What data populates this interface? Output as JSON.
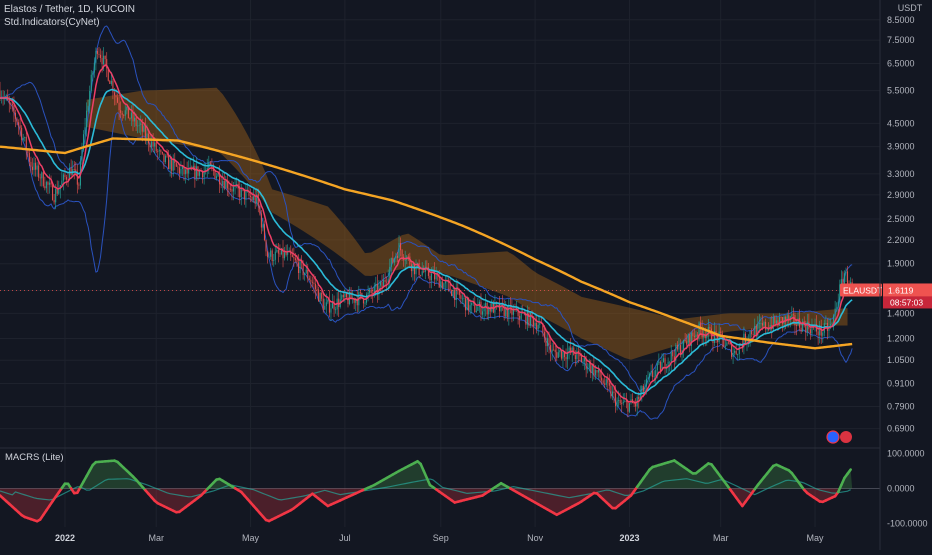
{
  "header": {
    "title": "Elastos / Tether, 1D, KUCOIN",
    "indicator": "Std.Indicators(CyNet)",
    "currency": "USDT"
  },
  "price_badge": {
    "symbol": "ELAUSDT",
    "price": "1.6119",
    "countdown": "08:57:03",
    "color": "#f23645"
  },
  "colors": {
    "background": "#131722",
    "candle_up": "#26a69a",
    "candle_down": "#ef5350",
    "ema_fast": "#ef3f67",
    "ema_mid": "#2bbbd8",
    "ema_slow": "#f5a524",
    "bollinger": "#2a52be",
    "cloud": "#a06218",
    "macd_pos": "#4caf50",
    "macd_neg": "#f23645"
  },
  "chart_data": [
    {
      "type": "candlestick",
      "title": "Elastos / Tether, 1D, KUCOIN",
      "ylabel": "USDT",
      "yscale": "log",
      "ylim": [
        0.62,
        9.6
      ],
      "yticks": [
        "8.5000",
        "7.5000",
        "6.5000",
        "5.5000",
        "4.5000",
        "3.9000",
        "3.3000",
        "2.9000",
        "2.5000",
        "2.2000",
        "1.9000",
        "1.6119",
        "1.4000",
        "1.2000",
        "1.0500",
        "0.9100",
        "0.7900",
        "0.6900"
      ],
      "xticks": [
        "2022",
        "Mar",
        "May",
        "Jul",
        "Sep",
        "Nov",
        "2023",
        "Mar",
        "May"
      ],
      "x_range": [
        "2021-11-20",
        "2023-06-12"
      ],
      "last_price": 1.6119,
      "price_anchors": [
        [
          "2021-11-20",
          5.5
        ],
        [
          "2021-12-01",
          4.6
        ],
        [
          "2021-12-10",
          3.5
        ],
        [
          "2021-12-25",
          2.9
        ],
        [
          "2022-01-05",
          3.4
        ],
        [
          "2022-01-10",
          3.1
        ],
        [
          "2022-01-22",
          7.2
        ],
        [
          "2022-02-05",
          5.0
        ],
        [
          "2022-02-20",
          4.3
        ],
        [
          "2022-03-05",
          3.6
        ],
        [
          "2022-03-20",
          3.3
        ],
        [
          "2022-04-05",
          3.4
        ],
        [
          "2022-04-20",
          3.0
        ],
        [
          "2022-05-05",
          2.8
        ],
        [
          "2022-05-12",
          2.0
        ],
        [
          "2022-05-25",
          2.0
        ],
        [
          "2022-06-08",
          1.75
        ],
        [
          "2022-06-18",
          1.45
        ],
        [
          "2022-06-30",
          1.52
        ],
        [
          "2022-07-15",
          1.55
        ],
        [
          "2022-07-25",
          1.65
        ],
        [
          "2022-08-05",
          2.1
        ],
        [
          "2022-08-15",
          1.85
        ],
        [
          "2022-08-28",
          1.75
        ],
        [
          "2022-09-08",
          1.62
        ],
        [
          "2022-09-20",
          1.45
        ],
        [
          "2022-10-05",
          1.45
        ],
        [
          "2022-10-20",
          1.4
        ],
        [
          "2022-11-03",
          1.32
        ],
        [
          "2022-11-12",
          1.1
        ],
        [
          "2022-11-25",
          1.1
        ],
        [
          "2022-12-10",
          0.98
        ],
        [
          "2022-12-25",
          0.8
        ],
        [
          "2023-01-05",
          0.8
        ],
        [
          "2023-01-15",
          0.95
        ],
        [
          "2023-01-25",
          1.05
        ],
        [
          "2023-02-05",
          1.15
        ],
        [
          "2023-02-15",
          1.27
        ],
        [
          "2023-02-28",
          1.2
        ],
        [
          "2023-03-10",
          1.1
        ],
        [
          "2023-03-20",
          1.25
        ],
        [
          "2023-04-01",
          1.3
        ],
        [
          "2023-04-12",
          1.35
        ],
        [
          "2023-04-25",
          1.3
        ],
        [
          "2023-05-05",
          1.25
        ],
        [
          "2023-05-12",
          1.3
        ],
        [
          "2023-05-20",
          1.8
        ],
        [
          "2023-05-25",
          1.6119
        ]
      ],
      "ema_slow_anchors": [
        [
          "2021-11-20",
          3.9
        ],
        [
          "2022-01-01",
          3.75
        ],
        [
          "2022-02-01",
          4.1
        ],
        [
          "2022-03-15",
          4.05
        ],
        [
          "2022-05-01",
          3.6
        ],
        [
          "2022-07-01",
          3.0
        ],
        [
          "2022-08-01",
          2.8
        ],
        [
          "2022-09-15",
          2.4
        ],
        [
          "2022-11-01",
          1.95
        ],
        [
          "2022-12-01",
          1.7
        ],
        [
          "2023-01-01",
          1.5
        ],
        [
          "2023-02-01",
          1.35
        ],
        [
          "2023-03-01",
          1.22
        ],
        [
          "2023-04-01",
          1.17
        ],
        [
          "2023-05-01",
          1.13
        ],
        [
          "2023-05-25",
          1.16
        ]
      ],
      "cloud_top_anchors": [
        [
          "2022-01-15",
          5.2
        ],
        [
          "2022-02-20",
          5.5
        ],
        [
          "2022-04-10",
          5.6
        ],
        [
          "2022-04-25",
          4.5
        ],
        [
          "2022-05-15",
          3.0
        ],
        [
          "2022-06-20",
          2.7
        ],
        [
          "2022-07-15",
          2.0
        ],
        [
          "2022-08-10",
          2.3
        ],
        [
          "2022-09-01",
          2.0
        ],
        [
          "2022-10-15",
          2.05
        ],
        [
          "2022-11-01",
          1.8
        ],
        [
          "2022-12-01",
          1.55
        ],
        [
          "2023-01-01",
          1.45
        ],
        [
          "2023-02-01",
          1.35
        ],
        [
          "2023-03-05",
          1.4
        ],
        [
          "2023-04-15",
          1.4
        ],
        [
          "2023-05-25",
          1.45
        ]
      ],
      "cloud_bottom_anchors": [
        [
          "2022-01-15",
          4.4
        ],
        [
          "2022-02-20",
          4.1
        ],
        [
          "2022-04-10",
          3.8
        ],
        [
          "2022-05-15",
          2.6
        ],
        [
          "2022-06-20",
          2.1
        ],
        [
          "2022-07-15",
          1.75
        ],
        [
          "2022-08-10",
          1.85
        ],
        [
          "2022-09-01",
          1.8
        ],
        [
          "2022-10-15",
          1.55
        ],
        [
          "2022-11-01",
          1.4
        ],
        [
          "2022-12-01",
          1.2
        ],
        [
          "2023-01-01",
          1.05
        ],
        [
          "2023-02-01",
          1.15
        ],
        [
          "2023-03-05",
          1.25
        ],
        [
          "2023-04-15",
          1.3
        ],
        [
          "2023-05-25",
          1.3
        ]
      ]
    },
    {
      "type": "area",
      "title": "MACRS (Lite)",
      "ylim": [
        -110,
        110
      ],
      "yticks": [
        "100.0000",
        "0.0000",
        "-100.0000"
      ],
      "anchors": [
        [
          "2021-11-20",
          -20
        ],
        [
          "2021-12-05",
          -80
        ],
        [
          "2021-12-15",
          -95
        ],
        [
          "2021-12-25",
          -30
        ],
        [
          "2022-01-02",
          20
        ],
        [
          "2022-01-08",
          -20
        ],
        [
          "2022-01-20",
          75
        ],
        [
          "2022-02-03",
          80
        ],
        [
          "2022-02-15",
          30
        ],
        [
          "2022-03-01",
          -40
        ],
        [
          "2022-03-15",
          -70
        ],
        [
          "2022-03-30",
          -20
        ],
        [
          "2022-04-10",
          30
        ],
        [
          "2022-04-25",
          -10
        ],
        [
          "2022-05-12",
          -95
        ],
        [
          "2022-05-28",
          -60
        ],
        [
          "2022-06-10",
          -15
        ],
        [
          "2022-06-20",
          -50
        ],
        [
          "2022-07-05",
          -20
        ],
        [
          "2022-07-20",
          10
        ],
        [
          "2022-08-05",
          50
        ],
        [
          "2022-08-18",
          80
        ],
        [
          "2022-08-25",
          10
        ],
        [
          "2022-09-10",
          -40
        ],
        [
          "2022-09-28",
          -20
        ],
        [
          "2022-10-10",
          15
        ],
        [
          "2022-10-20",
          -10
        ],
        [
          "2022-11-05",
          -50
        ],
        [
          "2022-11-15",
          -75
        ],
        [
          "2022-11-30",
          -40
        ],
        [
          "2022-12-10",
          -10
        ],
        [
          "2022-12-22",
          -60
        ],
        [
          "2023-01-02",
          -20
        ],
        [
          "2023-01-15",
          60
        ],
        [
          "2023-01-30",
          80
        ],
        [
          "2023-02-12",
          40
        ],
        [
          "2023-02-22",
          75
        ],
        [
          "2023-03-05",
          10
        ],
        [
          "2023-03-15",
          -50
        ],
        [
          "2023-03-25",
          10
        ],
        [
          "2023-04-05",
          70
        ],
        [
          "2023-04-15",
          50
        ],
        [
          "2023-04-25",
          -10
        ],
        [
          "2023-05-05",
          -40
        ],
        [
          "2023-05-15",
          -20
        ],
        [
          "2023-05-20",
          30
        ],
        [
          "2023-05-25",
          60
        ]
      ]
    }
  ]
}
